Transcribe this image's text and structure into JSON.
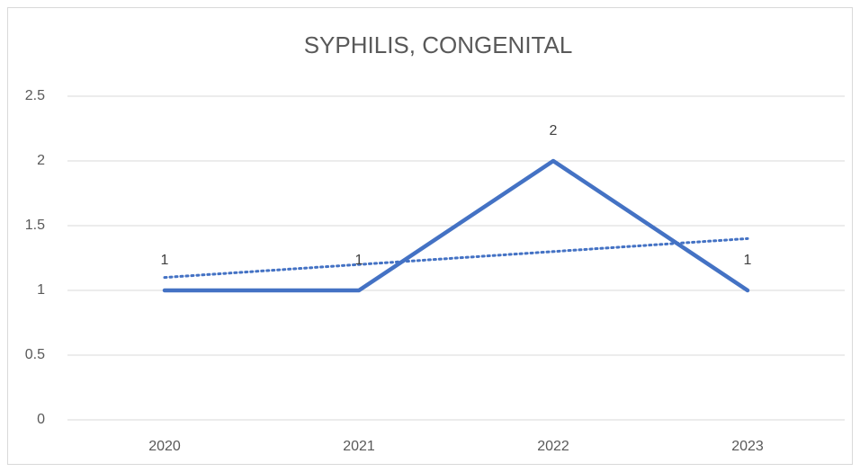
{
  "chart_data": {
    "type": "line",
    "title": "SYPHILIS, CONGENITAL",
    "categories": [
      "2020",
      "2021",
      "2022",
      "2023"
    ],
    "values": [
      1,
      1,
      2,
      1
    ],
    "color": "#4472c4",
    "trendline": {
      "values": [
        1.1,
        1.2,
        1.3,
        1.4
      ],
      "color": "#4472c4",
      "style": "dotted"
    },
    "ylim": [
      0,
      2.5
    ],
    "yticks": [
      0,
      0.5,
      1,
      1.5,
      2,
      2.5
    ],
    "grid": true,
    "data_labels": true
  }
}
